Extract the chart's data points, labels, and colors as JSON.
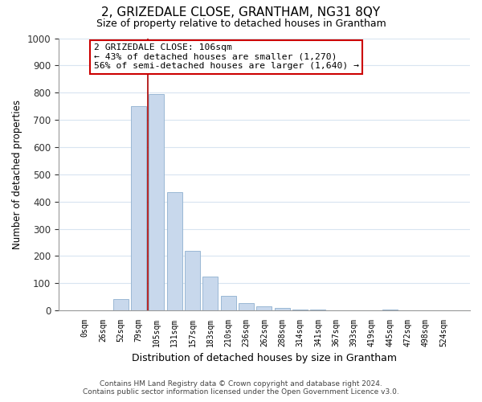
{
  "title": "2, GRIZEDALE CLOSE, GRANTHAM, NG31 8QY",
  "subtitle": "Size of property relative to detached houses in Grantham",
  "xlabel": "Distribution of detached houses by size in Grantham",
  "ylabel": "Number of detached properties",
  "bar_color": "#c8d8ec",
  "bar_edge_color": "#9ab8d4",
  "annotation_box_color": "#ffffff",
  "annotation_box_edge": "#cc0000",
  "bins": [
    "0sqm",
    "26sqm",
    "52sqm",
    "79sqm",
    "105sqm",
    "131sqm",
    "157sqm",
    "183sqm",
    "210sqm",
    "236sqm",
    "262sqm",
    "288sqm",
    "314sqm",
    "341sqm",
    "367sqm",
    "393sqm",
    "419sqm",
    "445sqm",
    "472sqm",
    "498sqm",
    "524sqm"
  ],
  "values": [
    0,
    0,
    43,
    750,
    795,
    435,
    220,
    125,
    53,
    28,
    15,
    8,
    5,
    3,
    1,
    0,
    0,
    5,
    0,
    0,
    0
  ],
  "ylim": [
    0,
    1000
  ],
  "yticks": [
    0,
    100,
    200,
    300,
    400,
    500,
    600,
    700,
    800,
    900,
    1000
  ],
  "annotation_line1": "2 GRIZEDALE CLOSE: 106sqm",
  "annotation_line2": "← 43% of detached houses are smaller (1,270)",
  "annotation_line3": "56% of semi-detached houses are larger (1,640) →",
  "footer_line1": "Contains HM Land Registry data © Crown copyright and database right 2024.",
  "footer_line2": "Contains public sector information licensed under the Open Government Licence v3.0.",
  "vline_color": "#aa0000",
  "background_color": "#ffffff",
  "grid_color": "#d8e4f0"
}
